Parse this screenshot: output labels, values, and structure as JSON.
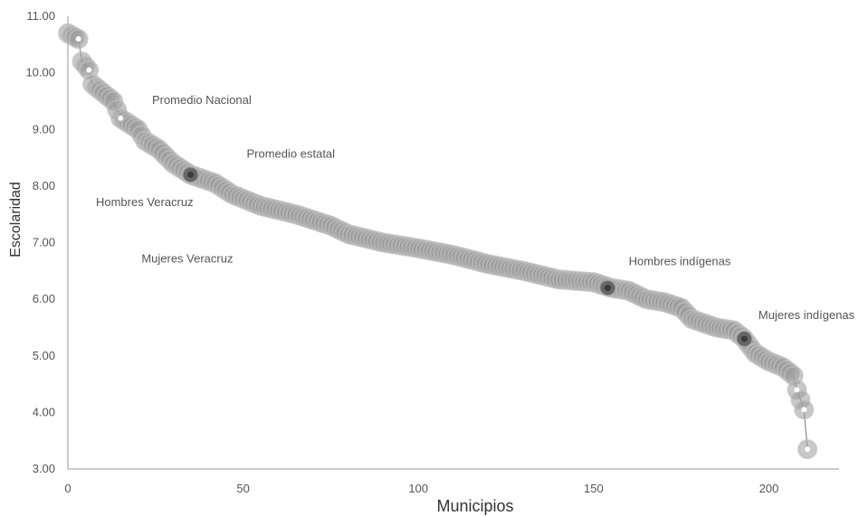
{
  "chart_data": {
    "type": "scatter",
    "xlabel": "Municipios",
    "ylabel": "Escolaridad",
    "xlim": [
      0,
      220
    ],
    "ylim": [
      3.0,
      11.0
    ],
    "x_ticks": [
      "0",
      "50",
      "100",
      "150",
      "200"
    ],
    "y_ticks": [
      "3.00",
      "4.00",
      "5.00",
      "6.00",
      "7.00",
      "8.00",
      "9.00",
      "10.00",
      "11.00"
    ],
    "grid": false,
    "colors": {
      "points": "#9a9a9a",
      "points_stroke": "#bdbdbd",
      "highlight": "#5a5a5a",
      "line": "#8a8a8a"
    },
    "curve_anchors": [
      [
        0,
        10.7
      ],
      [
        3,
        10.6
      ],
      [
        4,
        10.2
      ],
      [
        6,
        10.05
      ],
      [
        7,
        9.8
      ],
      [
        10,
        9.65
      ],
      [
        13,
        9.5
      ],
      [
        15,
        9.2
      ],
      [
        20,
        9.0
      ],
      [
        22,
        8.8
      ],
      [
        26,
        8.65
      ],
      [
        30,
        8.4
      ],
      [
        35,
        8.2
      ],
      [
        42,
        8.05
      ],
      [
        47,
        7.85
      ],
      [
        55,
        7.65
      ],
      [
        65,
        7.5
      ],
      [
        75,
        7.3
      ],
      [
        80,
        7.15
      ],
      [
        90,
        7.0
      ],
      [
        100,
        6.9
      ],
      [
        110,
        6.78
      ],
      [
        120,
        6.62
      ],
      [
        130,
        6.5
      ],
      [
        140,
        6.35
      ],
      [
        150,
        6.3
      ],
      [
        155,
        6.2
      ],
      [
        160,
        6.15
      ],
      [
        165,
        6.0
      ],
      [
        170,
        5.95
      ],
      [
        175,
        5.85
      ],
      [
        178,
        5.65
      ],
      [
        185,
        5.5
      ],
      [
        190,
        5.45
      ],
      [
        193,
        5.3
      ],
      [
        196,
        5.05
      ],
      [
        200,
        4.9
      ],
      [
        204,
        4.8
      ],
      [
        207,
        4.65
      ],
      [
        208,
        4.4
      ],
      [
        210,
        4.05
      ],
      [
        211,
        3.35
      ]
    ],
    "highlighted": [
      {
        "x": 35,
        "y": 8.2
      },
      {
        "x": 154,
        "y": 6.2
      },
      {
        "x": 193,
        "y": 5.3
      }
    ],
    "annotations": [
      {
        "text": "Promedio Nacional",
        "x": 24,
        "y": 9.45
      },
      {
        "text": "Promedio estatal",
        "x": 51,
        "y": 8.5
      },
      {
        "text": "Hombres Veracruz",
        "x": 8,
        "y": 7.65
      },
      {
        "text": "Mujeres Veracruz",
        "x": 21,
        "y": 6.65
      },
      {
        "text": "Hombres indígenas",
        "x": 160,
        "y": 6.6
      },
      {
        "text": "Mujeres indígenas",
        "x": 197,
        "y": 5.65
      }
    ]
  }
}
